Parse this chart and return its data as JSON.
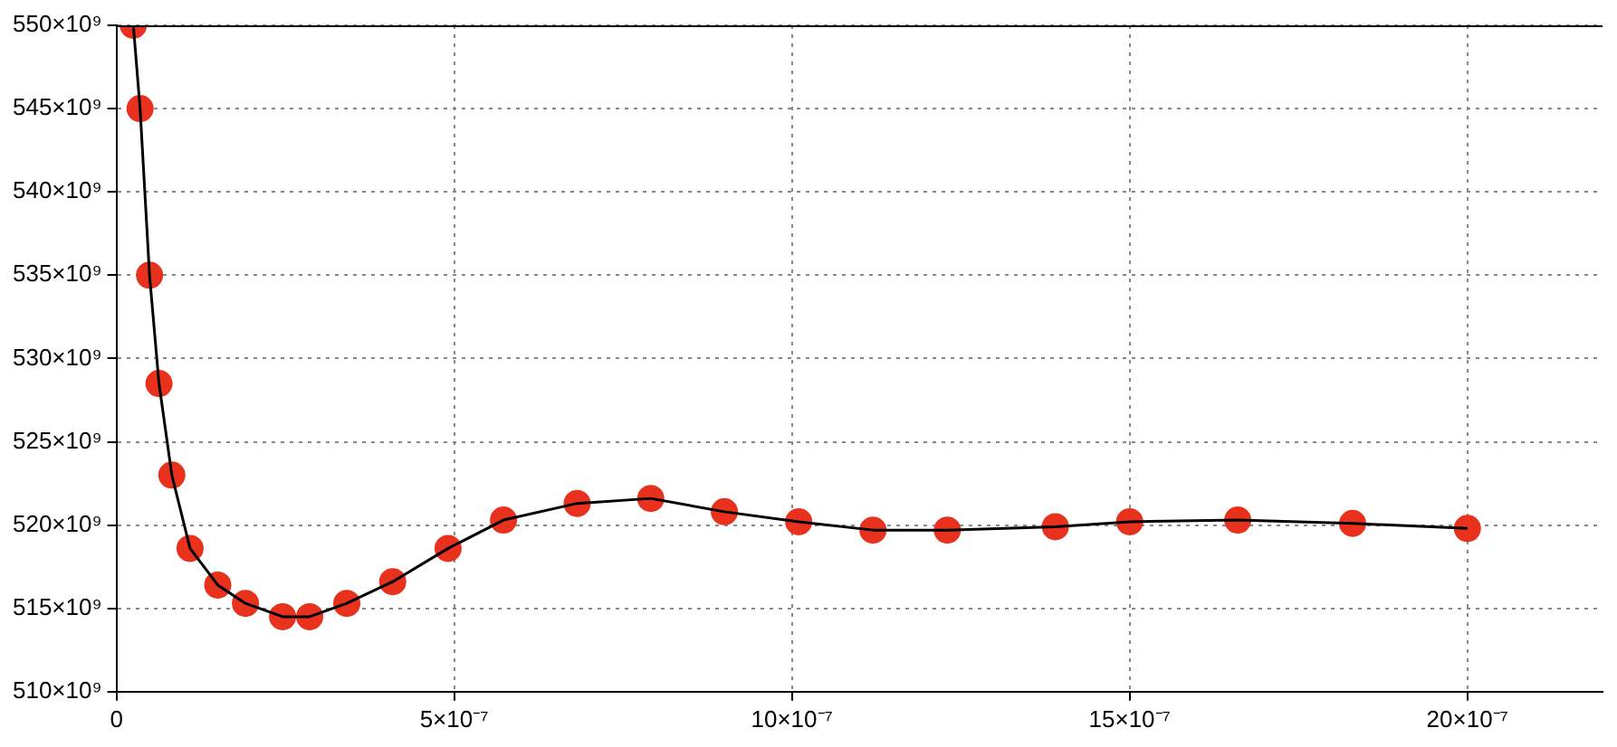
{
  "chart_data": {
    "type": "line",
    "x": [
      2.5e-08,
      3.5e-08,
      4.9e-08,
      6.3e-08,
      8.2e-08,
      1.09e-07,
      1.5e-07,
      1.91e-07,
      2.46e-07,
      2.86e-07,
      3.41e-07,
      4.09e-07,
      4.91e-07,
      5.73e-07,
      6.82e-07,
      7.91e-07,
      9e-07,
      1.01e-06,
      1.12e-06,
      1.23e-06,
      1.39e-06,
      1.5e-06,
      1.66e-06,
      1.83e-06,
      2e-06
    ],
    "series": [
      {
        "type": "scatter",
        "marker": "circle",
        "color": "#e8321e",
        "values": [
          550000000000.0,
          545000000000.0,
          535000000000.0,
          528500000000.0,
          523000000000.0,
          518600000000.0,
          516400000000.0,
          515300000000.0,
          514500000000.0,
          514500000000.0,
          515300000000.0,
          516600000000.0,
          518600000000.0,
          520300000000.0,
          521300000000.0,
          521600000000.0,
          520800000000.0,
          520200000000.0,
          519700000000.0,
          519700000000.0,
          519900000000.0,
          520200000000.0,
          520300000000.0,
          520100000000.0,
          519800000000.0
        ]
      },
      {
        "marker": "none",
        "line_style": "solid",
        "color": "#000000",
        "values": [
          550000000000.0,
          545000000000.0,
          535000000000.0,
          528500000000.0,
          523000000000.0,
          518600000000.0,
          516400000000.0,
          515300000000.0,
          514500000000.0,
          514500000000.0,
          515300000000.0,
          516600000000.0,
          518600000000.0,
          520300000000.0,
          521300000000.0,
          521600000000.0,
          520800000000.0,
          520200000000.0,
          519700000000.0,
          519700000000.0,
          519900000000.0,
          520200000000.0,
          520300000000.0,
          520100000000.0,
          519800000000.0
        ]
      }
    ],
    "xlim": [
      0,
      2.2e-06
    ],
    "xticks": [
      {
        "value": 0,
        "label": "0"
      },
      {
        "value": 5e-07,
        "label": "5×10⁻⁷"
      },
      {
        "value": 1e-06,
        "label": "10×10⁻⁷"
      },
      {
        "value": 1.5e-06,
        "label": "15×10⁻⁷"
      },
      {
        "value": 2e-06,
        "label": "20×10⁻⁷"
      }
    ],
    "ylim": [
      510000000000.0,
      550000000000.0
    ],
    "yticks": [
      {
        "value": 510000000000.0,
        "label": "510×10⁹"
      },
      {
        "value": 515000000000.0,
        "label": "515×10⁹"
      },
      {
        "value": 520000000000.0,
        "label": "520×10⁹"
      },
      {
        "value": 525000000000.0,
        "label": "525×10⁹"
      },
      {
        "value": 530000000000.0,
        "label": "530×10⁹"
      },
      {
        "value": 535000000000.0,
        "label": "535×10⁹"
      },
      {
        "value": 540000000000.0,
        "label": "540×10⁹"
      },
      {
        "value": 545000000000.0,
        "label": "545×10⁹"
      },
      {
        "value": 550000000000.0,
        "label": "550×10⁹"
      }
    ],
    "grid": true,
    "legend": false
  }
}
